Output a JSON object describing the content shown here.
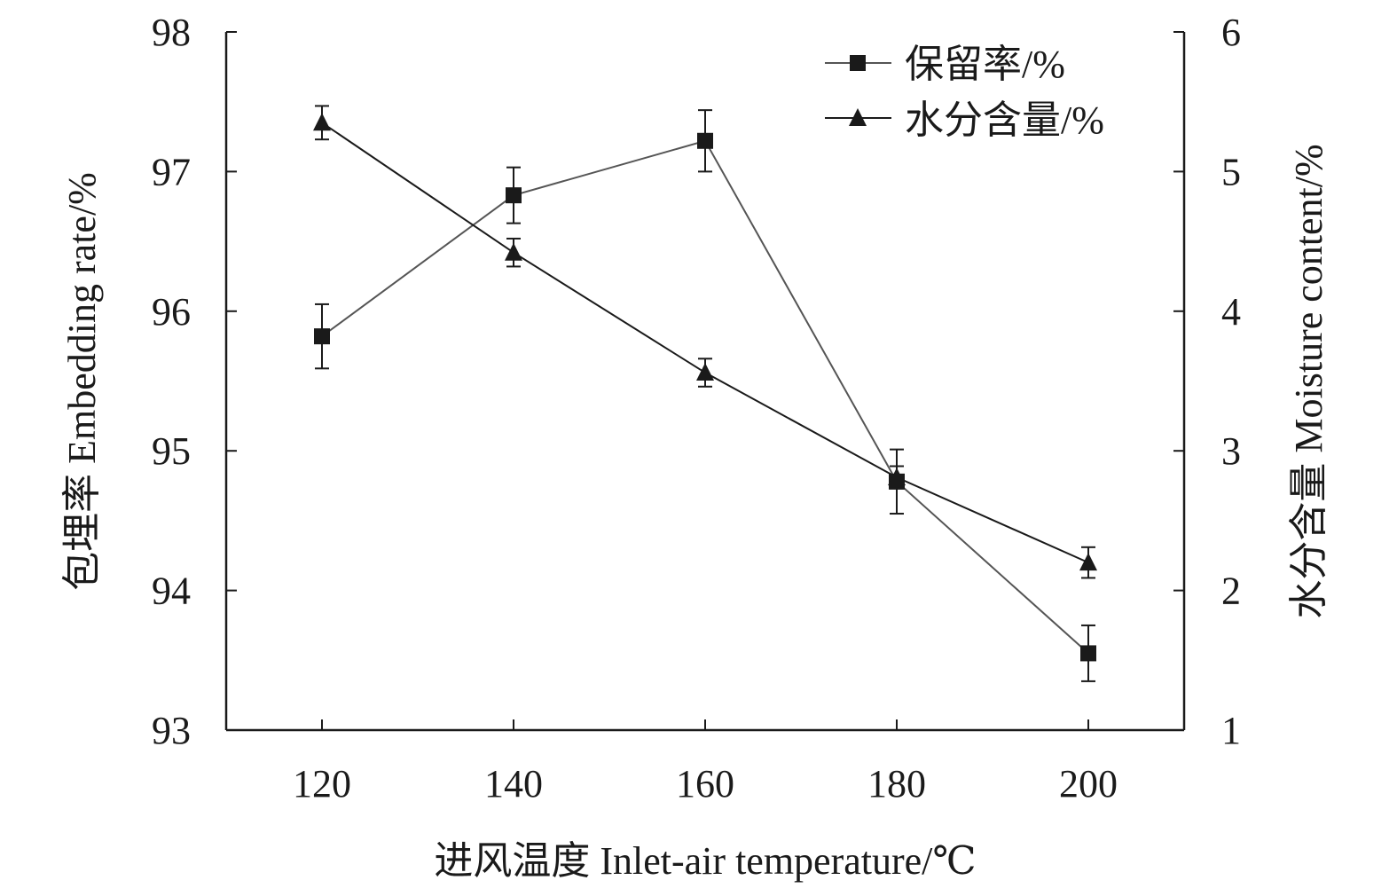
{
  "chart_data": {
    "type": "line",
    "x": [
      120,
      140,
      160,
      180,
      200
    ],
    "xlim": [
      110,
      210
    ],
    "xticks": [
      "120",
      "140",
      "160",
      "180",
      "200"
    ],
    "xlabel": "进风温度 Inlet-air temperature/℃",
    "ylabel_left": "包埋率 Embedding rate/%",
    "ylabel_right": "水分含量 Moisture content/%",
    "ylim_left": [
      93,
      98
    ],
    "ylim_right": [
      1,
      6
    ],
    "yticks_left": [
      "93",
      "94",
      "95",
      "96",
      "97",
      "98"
    ],
    "yticks_right": [
      "1",
      "2",
      "3",
      "4",
      "5",
      "6"
    ],
    "grid": false,
    "legend_position": "top-right",
    "series": [
      {
        "name": "保留率/%",
        "axis": "left",
        "marker": "square",
        "values": [
          95.82,
          96.83,
          97.22,
          94.78,
          93.55
        ],
        "errors": [
          0.23,
          0.2,
          0.22,
          0.23,
          0.2
        ],
        "color": "#555555"
      },
      {
        "name": "水分含量/%",
        "axis": "right",
        "marker": "triangle",
        "values": [
          5.35,
          4.42,
          3.56,
          2.81,
          2.2
        ],
        "errors": [
          0.12,
          0.1,
          0.1,
          0.08,
          0.11
        ],
        "color": "#1a1a1a"
      }
    ]
  }
}
